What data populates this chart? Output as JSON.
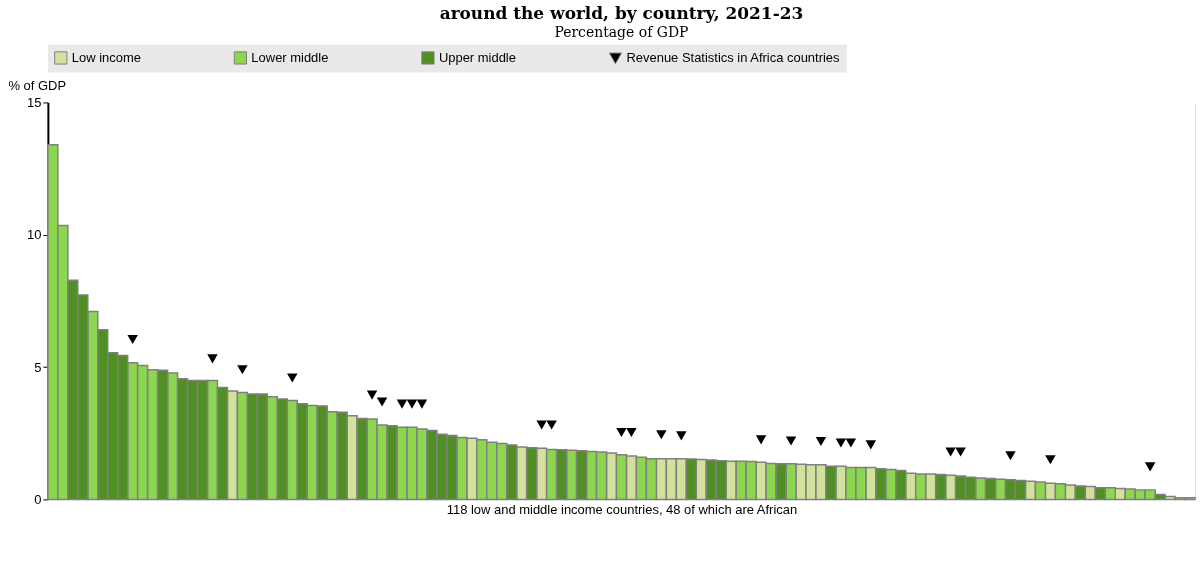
{
  "chart_data": {
    "type": "bar",
    "title": "around the world, by country, 2021-23",
    "subtitle": "Percentage of GDP",
    "ylabel": "% of GDP",
    "xlabel": "118 low and middle income countries, 48 of which are African",
    "categories": [
      null,
      null,
      null,
      null,
      null,
      null,
      null,
      null,
      null,
      null,
      null,
      null,
      null,
      null,
      null,
      null,
      null,
      null,
      null,
      null,
      null,
      null,
      null,
      null,
      null,
      null,
      null,
      null,
      null,
      null,
      null,
      null,
      null,
      null,
      null,
      null,
      null,
      null,
      null,
      null,
      null,
      null,
      null,
      null,
      null,
      null,
      null,
      null,
      null,
      null,
      null,
      null,
      null,
      null,
      null,
      null,
      null,
      null,
      null,
      null,
      null,
      null,
      null,
      null,
      null,
      null,
      null,
      null,
      null,
      null,
      null,
      null,
      null,
      null,
      null,
      null,
      null,
      null,
      null,
      null,
      null,
      null,
      null,
      null,
      null,
      null,
      null,
      null,
      null,
      null,
      null,
      null,
      null,
      null,
      null,
      null,
      null,
      null,
      null,
      null,
      null,
      null,
      null,
      null,
      null,
      null,
      null,
      null,
      null,
      null,
      null,
      null,
      null,
      null,
      null
    ],
    "series": [
      {
        "name": "Low income",
        "color": "#d2e29c",
        "values": [
          null,
          null,
          null,
          null,
          null,
          null,
          null,
          null,
          null,
          null,
          null,
          null,
          null,
          null,
          null,
          null,
          null,
          null,
          4.1,
          null,
          null,
          null,
          null,
          null,
          null,
          null,
          null,
          null,
          null,
          null,
          3.16,
          null,
          null,
          null,
          null,
          null,
          null,
          null,
          null,
          null,
          null,
          null,
          2.31,
          null,
          null,
          null,
          null,
          1.98,
          null,
          1.93,
          null,
          null,
          null,
          null,
          null,
          null,
          1.75,
          null,
          1.64,
          null,
          null,
          1.54,
          1.54,
          1.54,
          null,
          1.51,
          null,
          null,
          1.44,
          null,
          null,
          1.4,
          null,
          null,
          null,
          1.33,
          1.31,
          1.31,
          null,
          1.25,
          null,
          null,
          1.21,
          null,
          null,
          null,
          0.99,
          null,
          0.96,
          null,
          0.91,
          null,
          null,
          null,
          null,
          null,
          null,
          null,
          0.69,
          null,
          0.61,
          null,
          0.54,
          null,
          0.49,
          null,
          null,
          0.41,
          null,
          null,
          null,
          null,
          0.11,
          0.06,
          0.06
        ]
      },
      {
        "name": "Lower middle",
        "color": "#8cd650",
        "values": [
          13.4,
          10.35,
          null,
          null,
          7.1,
          null,
          null,
          null,
          5.16,
          5.06,
          4.9,
          null,
          4.78,
          null,
          null,
          null,
          4.49,
          null,
          null,
          4.04,
          null,
          null,
          3.88,
          null,
          3.74,
          null,
          3.55,
          null,
          3.31,
          null,
          null,
          null,
          3.04,
          2.81,
          null,
          2.73,
          2.73,
          2.66,
          null,
          null,
          null,
          2.34,
          null,
          2.25,
          2.16,
          2.11,
          null,
          null,
          null,
          null,
          1.89,
          null,
          1.86,
          null,
          1.81,
          1.79,
          null,
          1.69,
          null,
          1.59,
          1.54,
          null,
          null,
          null,
          null,
          null,
          null,
          null,
          null,
          1.44,
          1.43,
          null,
          1.36,
          null,
          1.35,
          null,
          null,
          null,
          null,
          null,
          1.21,
          1.21,
          null,
          null,
          1.13,
          null,
          null,
          0.96,
          null,
          null,
          null,
          null,
          null,
          0.81,
          null,
          0.76,
          null,
          null,
          null,
          0.66,
          null,
          0.59,
          null,
          null,
          null,
          null,
          0.44,
          null,
          0.39,
          0.36,
          0.36,
          null,
          null,
          null,
          null
        ]
      },
      {
        "name": "Upper middle",
        "color": "#4f8f23",
        "values": [
          null,
          null,
          8.28,
          7.72,
          null,
          6.41,
          5.54,
          5.44,
          null,
          null,
          null,
          4.88,
          null,
          4.56,
          4.49,
          4.49,
          null,
          4.23,
          null,
          null,
          3.98,
          3.98,
          null,
          3.79,
          null,
          3.61,
          null,
          3.53,
          null,
          3.29,
          null,
          3.06,
          null,
          null,
          2.78,
          null,
          null,
          null,
          2.6,
          2.46,
          2.41,
          null,
          null,
          null,
          null,
          null,
          2.06,
          null,
          1.95,
          null,
          null,
          1.88,
          null,
          1.84,
          null,
          null,
          null,
          null,
          null,
          null,
          null,
          null,
          null,
          null,
          1.53,
          null,
          1.49,
          1.46,
          null,
          null,
          null,
          null,
          null,
          1.35,
          null,
          null,
          null,
          null,
          1.25,
          null,
          null,
          null,
          null,
          1.16,
          null,
          1.09,
          null,
          null,
          null,
          0.94,
          null,
          0.88,
          0.84,
          null,
          0.79,
          null,
          0.74,
          0.71,
          null,
          null,
          null,
          null,
          null,
          0.51,
          null,
          0.44,
          null,
          null,
          null,
          null,
          null,
          0.19,
          null,
          null,
          null
        ]
      },
      {
        "name": "Revenue Statistics in Africa countries",
        "type": "scatter",
        "marker": "triangle",
        "color": "#000000",
        "values": [
          null,
          null,
          null,
          null,
          null,
          null,
          null,
          null,
          6.04,
          null,
          null,
          null,
          null,
          null,
          null,
          null,
          5.31,
          null,
          null,
          4.9,
          null,
          null,
          null,
          null,
          4.59,
          null,
          null,
          null,
          null,
          null,
          null,
          null,
          3.94,
          3.68,
          null,
          3.6,
          3.6,
          3.6,
          null,
          null,
          null,
          null,
          null,
          null,
          null,
          null,
          null,
          null,
          null,
          2.81,
          2.81,
          null,
          null,
          null,
          null,
          null,
          null,
          2.53,
          2.53,
          null,
          null,
          2.44,
          null,
          2.4,
          null,
          null,
          null,
          null,
          null,
          null,
          null,
          2.25,
          null,
          null,
          2.21,
          null,
          null,
          2.19,
          null,
          2.13,
          2.13,
          null,
          2.06,
          null,
          null,
          null,
          null,
          null,
          null,
          null,
          1.79,
          1.79,
          null,
          null,
          null,
          null,
          1.65,
          null,
          null,
          null,
          1.5,
          null,
          null,
          null,
          null,
          null,
          null,
          null,
          null,
          null,
          1.23,
          null,
          null,
          null,
          null
        ]
      }
    ],
    "ylim": [
      0,
      15
    ],
    "yticks": [
      0,
      5,
      10,
      15
    ],
    "grid": "y",
    "legend": "top"
  }
}
